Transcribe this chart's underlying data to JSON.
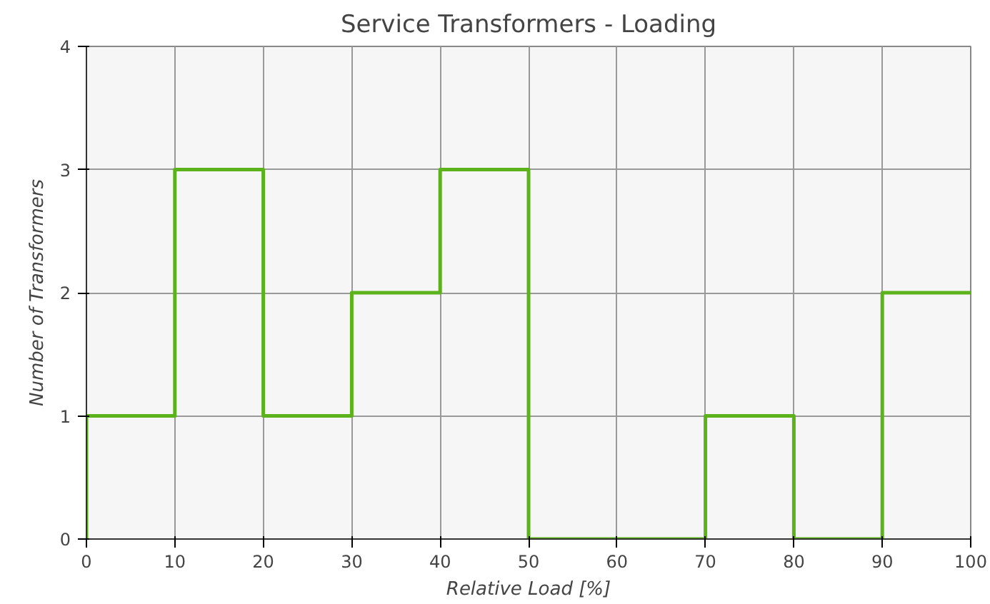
{
  "chart_data": {
    "type": "histogram",
    "title": "Service Transformers - Loading",
    "xlabel": "Relative Load [%]",
    "ylabel": "Number of Transformers",
    "bins": [
      0,
      10,
      20,
      30,
      40,
      50,
      60,
      70,
      80,
      90,
      100
    ],
    "values": [
      1,
      3,
      1,
      2,
      3,
      0,
      0,
      1,
      0,
      2
    ],
    "color": "#5cb21a",
    "xlim": [
      0,
      100
    ],
    "xticks": [
      0,
      10,
      20,
      30,
      40,
      50,
      60,
      70,
      80,
      90,
      100
    ],
    "ylim": [
      0,
      4
    ],
    "yticks": [
      0,
      1,
      2,
      3,
      4
    ],
    "grid": true
  }
}
